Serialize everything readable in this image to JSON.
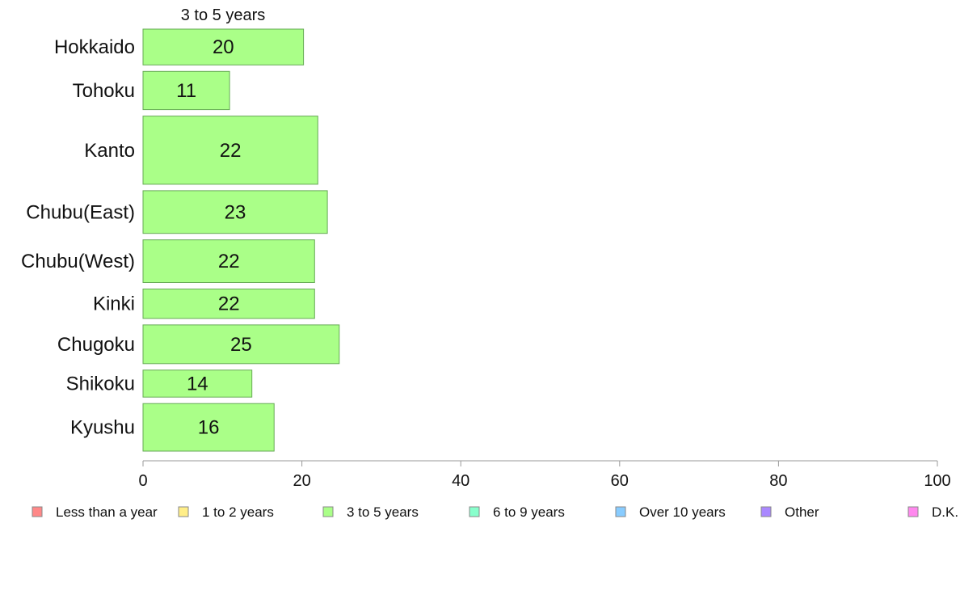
{
  "chart_data": {
    "type": "bar",
    "orientation": "horizontal",
    "title": "3 to 5 years",
    "categories": [
      "Hokkaido",
      "Tohoku",
      "Kanto",
      "Chubu(East)",
      "Chubu(West)",
      "Kinki",
      "Chugoku",
      "Shikoku",
      "Kyushu"
    ],
    "values": [
      20,
      11,
      22,
      23,
      22,
      22,
      25,
      14,
      16
    ],
    "exact_values": [
      20.2,
      10.9,
      22.0,
      23.2,
      21.6,
      21.6,
      24.7,
      13.7,
      16.5
    ],
    "category_weights": [
      0.73,
      0.78,
      1.39,
      0.87,
      0.87,
      0.6,
      0.79,
      0.55,
      0.97
    ],
    "xlim": [
      0,
      100
    ],
    "xticks": [
      0,
      20,
      40,
      60,
      80,
      100
    ],
    "grid": false,
    "bar_color": "#aaff88",
    "bar_stroke": "#66aa55",
    "legend": {
      "placement": "bottom",
      "items": [
        {
          "label": "Less than a year",
          "color": "#ff8888"
        },
        {
          "label": "1 to 2 years",
          "color": "#ffee88"
        },
        {
          "label": "3 to 5 years",
          "color": "#aaff88"
        },
        {
          "label": "6 to 9 years",
          "color": "#88ffcc"
        },
        {
          "label": "Over 10 years",
          "color": "#88ccff"
        },
        {
          "label": "Other",
          "color": "#aa88ff"
        },
        {
          "label": "D.K.",
          "color": "#ff88ee"
        }
      ]
    }
  }
}
